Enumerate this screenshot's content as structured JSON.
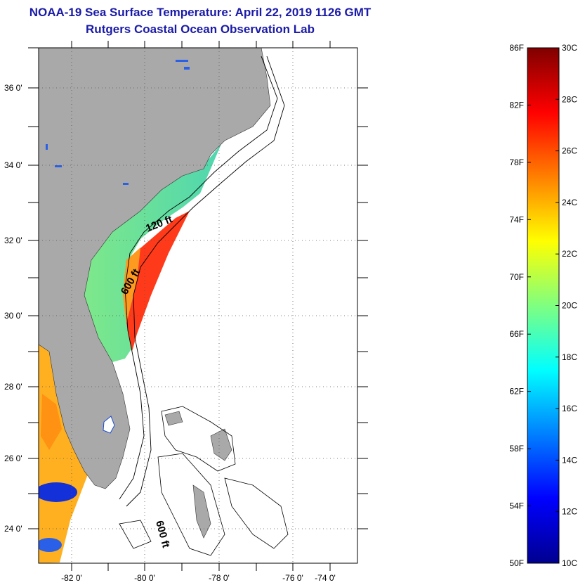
{
  "title": {
    "line1": "NOAA-19 Sea Surface Temperature:  April 22, 2019 1126 GMT",
    "line2": "Rutgers Coastal Ocean Observation Lab"
  },
  "map": {
    "lat_labels": [
      "36 0'",
      "34 0'",
      "32 0'",
      "30 0'",
      "28 0'",
      "26 0'",
      "24 0'"
    ],
    "lon_labels": [
      "-82 0'",
      "-80 0'",
      "-78 0'",
      "-76 0'",
      "-74 0'"
    ],
    "contour_labels": [
      "120 ft",
      "600 ft",
      "600 ft"
    ],
    "colors": {
      "land": "#a9a9a9",
      "sst_nearshore": "#6fe08f",
      "sst_offshore": "#ff3a1a",
      "sst_inland": "#ffb020",
      "coldspot": "#1430d8"
    }
  },
  "colorbar": {
    "fahrenheit_labels": [
      "86F",
      "82F",
      "78F",
      "74F",
      "70F",
      "66F",
      "62F",
      "58F",
      "54F",
      "50F"
    ],
    "celsius_labels": [
      "30C",
      "28C",
      "26C",
      "24C",
      "22C",
      "20C",
      "18C",
      "16C",
      "14C",
      "12C",
      "10C"
    ],
    "range_celsius": [
      10,
      30
    ],
    "range_fahrenheit": [
      50,
      86
    ],
    "colormap": "jet"
  }
}
